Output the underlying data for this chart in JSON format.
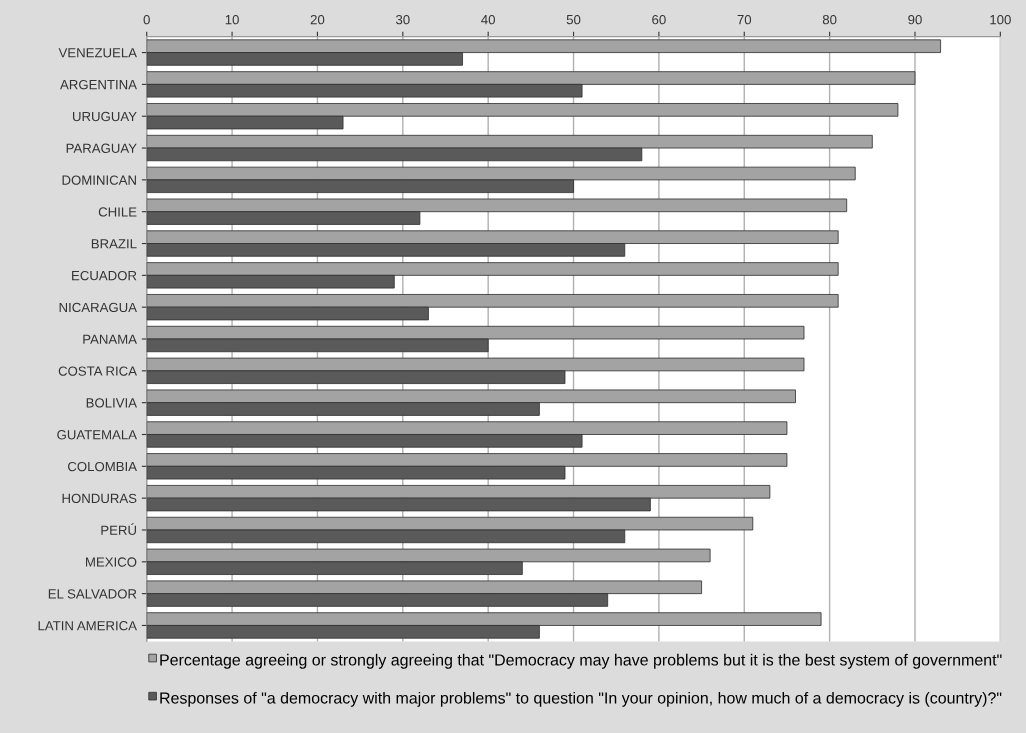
{
  "chart_data": {
    "type": "bar",
    "orientation": "horizontal",
    "categories": [
      "VENEZUELA",
      "ARGENTINA",
      "URUGUAY",
      "PARAGUAY",
      "DOMINICAN",
      "CHILE",
      "BRAZIL",
      "ECUADOR",
      "NICARAGUA",
      "PANAMA",
      "COSTA RICA",
      "BOLIVIA",
      "GUATEMALA",
      "COLOMBIA",
      "HONDURAS",
      "PERÚ",
      "MEXICO",
      "EL SALVADOR",
      "LATIN AMERICA"
    ],
    "series": [
      {
        "name": "Percentage agreeing or strongly agreeing that \"Democracy may have problems but it is the best system of government\"",
        "color": "#a3a3a3",
        "values": [
          93,
          90,
          88,
          85,
          83,
          82,
          81,
          81,
          81,
          77,
          77,
          76,
          75,
          75,
          73,
          71,
          66,
          65,
          79
        ]
      },
      {
        "name": "Responses of \"a democracy with major problems\" to question \"In your opinion, how much of a democracy is (country)?\"",
        "color": "#5a5a5a",
        "values": [
          37,
          51,
          23,
          58,
          50,
          32,
          56,
          29,
          33,
          40,
          49,
          46,
          51,
          49,
          59,
          56,
          44,
          54,
          46
        ]
      }
    ],
    "xlim": [
      0,
      100
    ],
    "xticks": [
      0,
      10,
      20,
      30,
      40,
      50,
      60,
      70,
      80,
      90,
      100
    ],
    "grid": "x",
    "legend": "bottom"
  }
}
